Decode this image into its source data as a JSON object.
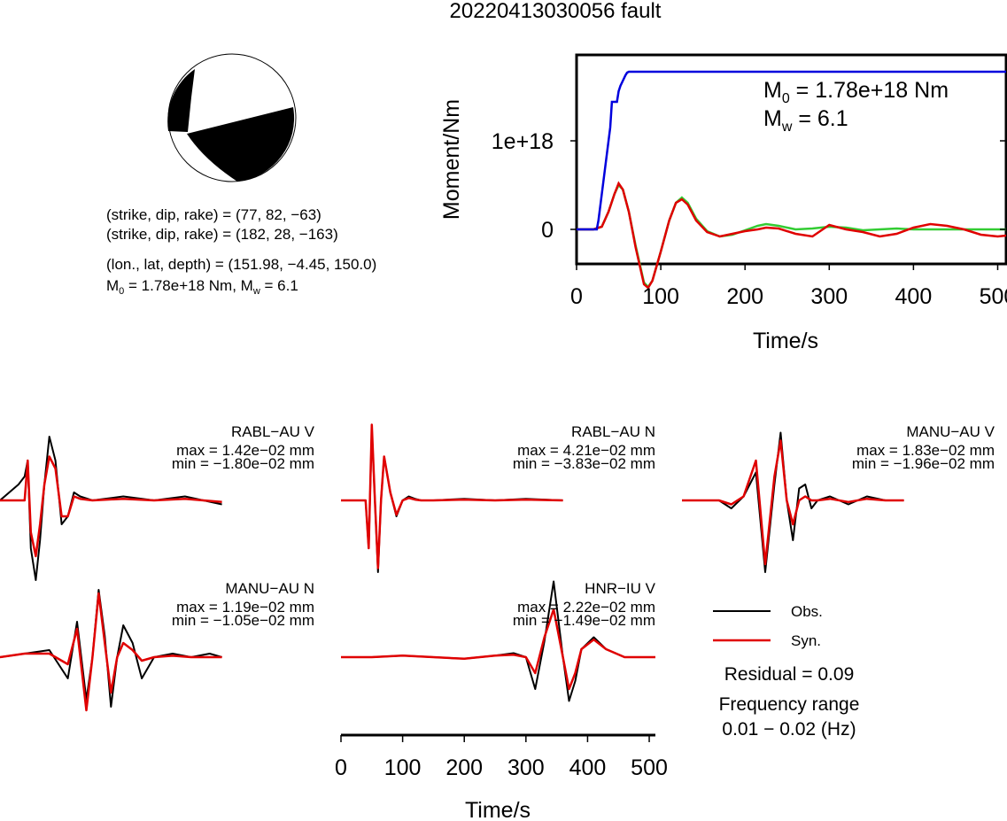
{
  "title": "20220413030056 fault",
  "mechanism": {
    "line1": "(strike, dip, rake) = (77, 82, −63)",
    "line2": "(strike, dip, rake) = (182, 28, −163)",
    "line3": "(lon., lat, depth) = (151.98, −4.45, 150.0)",
    "line4_prefix": "M",
    "line4_sub": "0",
    "line4_rest": " = 1.78e+18 Nm, M",
    "line4_sub2": "w",
    "line4_end": " = 6.1"
  },
  "colors": {
    "obs": "#000000",
    "syn": "#e00000",
    "moment": "#0000dd",
    "stf_green": "#33cc33"
  },
  "chart_data": [
    {
      "type": "line",
      "ylabel": "Moment/Nm",
      "xlabel": "Time/s",
      "xlim": [
        0,
        510
      ],
      "xticks": [
        "0",
        "100",
        "200",
        "300",
        "400",
        "500"
      ],
      "yticks": [
        "0",
        "1e+18"
      ],
      "annotation_m0": {
        "prefix": "M",
        "sub": "0",
        "rest": " = 1.78e+18 Nm"
      },
      "annotation_mw": {
        "prefix": "M",
        "sub": "w",
        "rest": " = 6.1"
      },
      "series": [
        {
          "color": "#0000dd",
          "x": [
            0,
            24,
            26,
            28,
            30,
            32,
            34,
            36,
            38,
            40,
            42,
            44,
            46,
            48,
            50,
            52,
            54,
            56,
            58,
            60,
            62,
            64,
            66,
            80,
            510
          ],
          "y": [
            0,
            0,
            0.1,
            0.25,
            0.4,
            0.55,
            0.7,
            0.85,
            1.0,
            1.15,
            1.44,
            1.44,
            1.44,
            1.44,
            1.56,
            1.62,
            1.66,
            1.7,
            1.74,
            1.77,
            1.78,
            1.78,
            1.78,
            1.78,
            1.78
          ]
        },
        {
          "color": "#33cc33",
          "x": [
            0,
            20,
            30,
            38,
            45,
            50,
            55,
            62,
            70,
            80,
            85,
            90,
            100,
            110,
            118,
            125,
            132,
            142,
            155,
            170,
            185,
            200,
            215,
            225,
            240,
            260,
            280,
            300,
            320,
            340,
            360,
            380,
            400,
            420,
            440,
            460,
            480,
            500,
            510
          ],
          "y": [
            0,
            0,
            0.03,
            0.2,
            0.4,
            0.5,
            0.45,
            0.2,
            -0.18,
            -0.6,
            -0.65,
            -0.58,
            -0.25,
            0.1,
            0.3,
            0.36,
            0.3,
            0.12,
            -0.02,
            -0.08,
            -0.06,
            -0.01,
            0.04,
            0.06,
            0.04,
            0.0,
            0.01,
            0.03,
            0.02,
            -0.01,
            0.0,
            0.01,
            0.0,
            0.0,
            0.0,
            0.0,
            0.0,
            0.0,
            0.0
          ]
        },
        {
          "color": "#e00000",
          "x": [
            0,
            20,
            30,
            38,
            45,
            50,
            55,
            62,
            70,
            80,
            85,
            90,
            100,
            110,
            118,
            125,
            132,
            142,
            155,
            170,
            185,
            200,
            215,
            225,
            240,
            260,
            280,
            300,
            320,
            340,
            360,
            380,
            400,
            420,
            440,
            460,
            480,
            500,
            510
          ],
          "y": [
            0,
            0,
            0.03,
            0.2,
            0.4,
            0.52,
            0.45,
            0.2,
            -0.2,
            -0.62,
            -0.66,
            -0.58,
            -0.25,
            0.1,
            0.3,
            0.34,
            0.28,
            0.1,
            -0.03,
            -0.08,
            -0.05,
            -0.02,
            0.0,
            0.02,
            0.01,
            -0.05,
            -0.08,
            0.05,
            0.0,
            -0.03,
            -0.08,
            -0.05,
            0.02,
            0.06,
            0.04,
            0.0,
            -0.06,
            -0.08,
            -0.07
          ]
        }
      ]
    },
    {
      "type": "line",
      "xlabel": "Time/s",
      "xlim": [
        0,
        510
      ],
      "xticks": [
        "0",
        "100",
        "200",
        "300",
        "400",
        "500"
      ],
      "waveforms": [
        {
          "station": "RABL−AU V",
          "max": "max = 1.42e−02 mm",
          "min": "min = −1.80e−02 mm",
          "obs": {
            "x": [
              0,
              30,
              40,
              45,
              50,
              58,
              65,
              72,
              80,
              90,
              100,
              110,
              120,
              130,
              150,
              200,
              250,
              300,
              360
            ],
            "y": [
              0,
              0.2,
              0.3,
              0.5,
              -0.6,
              -1.0,
              -0.5,
              0.2,
              0.8,
              0.5,
              -0.3,
              -0.2,
              0.1,
              0.05,
              0.0,
              0.05,
              0.0,
              0.05,
              -0.05
            ]
          },
          "syn": {
            "x": [
              0,
              30,
              40,
              45,
              50,
              58,
              65,
              72,
              80,
              90,
              100,
              110,
              120,
              130,
              150,
              200,
              250,
              300,
              360
            ],
            "y": [
              0,
              0.0,
              0.0,
              0.5,
              -0.4,
              -0.7,
              -0.3,
              0.2,
              0.55,
              0.4,
              -0.2,
              -0.2,
              0.05,
              0.02,
              0.0,
              0.02,
              0.0,
              0.02,
              -0.02
            ]
          }
        },
        {
          "station": "RABL−AU N",
          "max": "max = 4.21e−02 mm",
          "min": "min = −3.83e−02 mm",
          "obs": {
            "x": [
              0,
              30,
              40,
              45,
              50,
              55,
              60,
              65,
              70,
              80,
              90,
              100,
              110,
              120,
              130,
              150,
              200,
              250,
              300,
              360
            ],
            "y": [
              0,
              0,
              0.0,
              -0.6,
              0.9,
              0.0,
              -0.9,
              0.0,
              0.55,
              0.1,
              -0.2,
              0.0,
              0.05,
              0.02,
              0.0,
              0.0,
              0.02,
              0.0,
              0.02,
              0.0
            ]
          },
          "syn": {
            "x": [
              0,
              30,
              40,
              45,
              50,
              55,
              60,
              65,
              70,
              80,
              90,
              100,
              110,
              120,
              130,
              150,
              200,
              250,
              300,
              360
            ],
            "y": [
              0,
              0,
              0.0,
              -0.6,
              0.95,
              0.0,
              -0.85,
              0.0,
              0.55,
              0.1,
              -0.18,
              0.0,
              0.03,
              0.01,
              0.0,
              0.0,
              0.01,
              0.0,
              0.01,
              0.0
            ]
          }
        },
        {
          "station": "MANU−AU V",
          "max": "max = 1.83e−02 mm",
          "min": "min = −1.96e−02 mm",
          "obs": {
            "x": [
              0,
              60,
              80,
              100,
              120,
              135,
              150,
              160,
              170,
              180,
              190,
              200,
              210,
              220,
              240,
              270,
              300,
              330,
              360
            ],
            "y": [
              0,
              0.0,
              -0.1,
              0.05,
              0.35,
              -0.9,
              0.2,
              0.85,
              0.0,
              -0.5,
              0.15,
              0.2,
              -0.1,
              0.0,
              0.05,
              -0.05,
              0.05,
              0.0,
              0.0
            ]
          },
          "syn": {
            "x": [
              0,
              60,
              80,
              100,
              120,
              135,
              150,
              160,
              170,
              180,
              190,
              200,
              210,
              220,
              240,
              270,
              300,
              330,
              360
            ],
            "y": [
              0,
              0.0,
              -0.05,
              0.05,
              0.5,
              -0.8,
              0.3,
              0.75,
              0.0,
              -0.3,
              0.0,
              0.05,
              0.0,
              0.0,
              0.02,
              -0.02,
              0.02,
              0.0,
              0.0
            ]
          }
        },
        {
          "station": "MANU−AU N",
          "max": "max = 1.19e−02 mm",
          "min": "min = −1.05e−02 mm",
          "obs": {
            "x": [
              0,
              40,
              80,
              110,
              125,
              140,
              150,
              160,
              170,
              180,
              190,
              200,
              215,
              230,
              250,
              280,
              310,
              340,
              360
            ],
            "y": [
              0,
              0.05,
              0.1,
              -0.3,
              0.5,
              -0.6,
              0.0,
              0.95,
              0.3,
              -0.7,
              0.0,
              0.45,
              0.2,
              -0.3,
              0.0,
              0.05,
              0.0,
              0.05,
              0.0
            ]
          },
          "syn": {
            "x": [
              0,
              40,
              80,
              110,
              125,
              140,
              150,
              160,
              170,
              180,
              190,
              200,
              215,
              230,
              250,
              280,
              310,
              340,
              360
            ],
            "y": [
              0,
              0.05,
              0.05,
              -0.1,
              0.4,
              -0.75,
              0.0,
              0.9,
              0.2,
              -0.5,
              0.0,
              0.2,
              0.1,
              -0.05,
              0.0,
              0.02,
              0.0,
              0.0,
              0.0
            ]
          }
        },
        {
          "station": "HNR−IU V",
          "max": "max = 2.22e−02 mm",
          "min": "min = −1.49e−02 mm",
          "obs": {
            "x": [
              0,
              50,
              100,
              150,
              200,
              250,
              280,
              300,
              315,
              330,
              345,
              360,
              370,
              380,
              390,
              410,
              430,
              460,
              500,
              510
            ],
            "y": [
              0,
              0.0,
              0.02,
              0.0,
              -0.02,
              0.02,
              0.05,
              0.0,
              -0.4,
              0.2,
              0.95,
              0.0,
              -0.55,
              -0.3,
              0.1,
              0.25,
              0.1,
              0.0,
              0.0,
              0.0
            ]
          },
          "syn": {
            "x": [
              0,
              50,
              100,
              150,
              200,
              250,
              280,
              300,
              315,
              330,
              345,
              360,
              370,
              380,
              390,
              410,
              430,
              460,
              500,
              510
            ],
            "y": [
              0,
              0.0,
              0.02,
              0.0,
              -0.02,
              0.02,
              0.03,
              0.0,
              -0.2,
              0.25,
              0.6,
              0.0,
              -0.4,
              -0.2,
              0.1,
              0.22,
              0.1,
              0.0,
              0.0,
              0.0
            ]
          }
        }
      ]
    }
  ],
  "legend": {
    "obs": "Obs.",
    "syn": "Syn."
  },
  "residual": "Residual = 0.09",
  "freq_label": "Frequency range",
  "freq_value": "0.01 − 0.02 (Hz)"
}
